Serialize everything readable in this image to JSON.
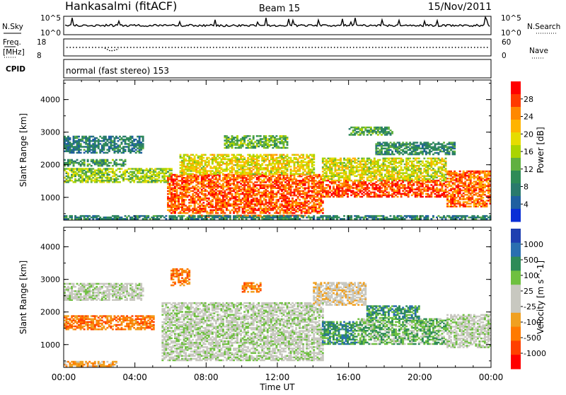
{
  "header": {
    "station": "Hankasalmi (fitACF)",
    "beam": "Beam 15",
    "date": "15/Nov/2011"
  },
  "nsky_panel": {
    "left_label": "N.Sky",
    "left_ticks": [
      "10^5",
      "10^0"
    ],
    "right_label": "N.Search",
    "right_ticks": [
      "10^5",
      "10^0"
    ]
  },
  "freq_panel": {
    "left_label_1": "Freq.",
    "left_label_2": "[MHz]",
    "left_ticks": [
      "18",
      "8"
    ],
    "right_label": "Nave",
    "right_ticks": [
      "60",
      "0"
    ]
  },
  "cpid_panel": {
    "label": "CPID",
    "mode_text": "normal (fast stereo) 153"
  },
  "chart_data": [
    {
      "type": "heatmap",
      "name": "power",
      "ylabel": "Slant Range [km]",
      "xlabel": "Time UT",
      "x_ticks": [
        "00:00",
        "04:00",
        "08:00",
        "12:00",
        "16:00",
        "20:00",
        "00:00"
      ],
      "y_ticks": [
        "4000",
        "3000",
        "2000",
        "1000"
      ],
      "ylim": [
        300,
        4600
      ],
      "xlim_hours": [
        0,
        24
      ],
      "colorbar_label": "Power [dB]",
      "colorbar_ticks": [
        "28",
        "24",
        "20",
        "16",
        "12",
        "8",
        "4"
      ],
      "colorbar_colors": [
        "#ff0000",
        "#ff3a00",
        "#ff8800",
        "#ffb400",
        "#e6dc00",
        "#aad400",
        "#60b040",
        "#2e8b57",
        "#2a7a6c",
        "#1f5fa0",
        "#0a2fd6"
      ],
      "regions": [
        {
          "t0": 0.0,
          "t1": 4.5,
          "r0": 2350,
          "r1": 2850,
          "level": 6
        },
        {
          "t0": 0.0,
          "t1": 6.0,
          "r0": 1450,
          "r1": 1900,
          "level": 14
        },
        {
          "t0": 0.0,
          "t1": 3.5,
          "r0": 1950,
          "r1": 2150,
          "level": 9
        },
        {
          "t0": 5.8,
          "t1": 14.5,
          "r0": 500,
          "r1": 1700,
          "level": 26
        },
        {
          "t0": 6.5,
          "t1": 14.0,
          "r0": 1700,
          "r1": 2300,
          "level": 18
        },
        {
          "t0": 7.0,
          "t1": 13.5,
          "r0": 380,
          "r1": 470,
          "level": 24
        },
        {
          "t0": 14.5,
          "t1": 21.5,
          "r0": 1000,
          "r1": 1500,
          "level": 27
        },
        {
          "t0": 14.5,
          "t1": 21.5,
          "r0": 1500,
          "r1": 2200,
          "level": 17
        },
        {
          "t0": 16.0,
          "t1": 18.5,
          "r0": 2900,
          "r1": 3150,
          "level": 10
        },
        {
          "t0": 17.5,
          "t1": 22.0,
          "r0": 2300,
          "r1": 2700,
          "level": 8
        },
        {
          "t0": 21.5,
          "t1": 24.0,
          "r0": 700,
          "r1": 1800,
          "level": 25
        },
        {
          "t0": 9.0,
          "t1": 12.5,
          "r0": 2500,
          "r1": 2900,
          "level": 12
        },
        {
          "t0": 0.0,
          "t1": 24.0,
          "r0": 320,
          "r1": 420,
          "level": 7
        }
      ]
    },
    {
      "type": "heatmap",
      "name": "velocity",
      "ylabel": "Slant Range [km]",
      "xlabel": "Time UT",
      "x_ticks": [
        "00:00",
        "04:00",
        "08:00",
        "12:00",
        "16:00",
        "20:00",
        "00:00"
      ],
      "y_ticks": [
        "4000",
        "3000",
        "2000",
        "1000"
      ],
      "ylim": [
        300,
        4600
      ],
      "xlim_hours": [
        0,
        24
      ],
      "colorbar_label": "Velocity [m s^-1]",
      "colorbar_ticks": [
        "1000",
        "500",
        "100",
        "25",
        "-25",
        "-100",
        "-500",
        "-1000"
      ],
      "colorbar_colors": [
        "#1f3fb0",
        "#2a6fb0",
        "#2e8b57",
        "#6fc040",
        "#c8c8c0",
        "#c8c8c0",
        "#f0a020",
        "#ff7a00",
        "#ff4000",
        "#ff0000"
      ],
      "regions": [
        {
          "t0": 0.0,
          "t1": 4.5,
          "r0": 2350,
          "r1": 2850,
          "level": 4
        },
        {
          "t0": 0.0,
          "t1": 5.0,
          "r0": 1450,
          "r1": 1900,
          "level": 7
        },
        {
          "t0": 5.5,
          "t1": 14.5,
          "r0": 500,
          "r1": 2300,
          "level": 4
        },
        {
          "t0": 14.5,
          "t1": 16.5,
          "r0": 1000,
          "r1": 1700,
          "level": 2
        },
        {
          "t0": 16.5,
          "t1": 21.5,
          "r0": 1000,
          "r1": 1800,
          "level": 3
        },
        {
          "t0": 17.0,
          "t1": 20.0,
          "r0": 1800,
          "r1": 2200,
          "level": 2
        },
        {
          "t0": 21.5,
          "t1": 24.0,
          "r0": 900,
          "r1": 1900,
          "level": 4
        },
        {
          "t0": 6.0,
          "t1": 7.0,
          "r0": 2800,
          "r1": 3300,
          "level": 7
        },
        {
          "t0": 10.0,
          "t1": 11.0,
          "r0": 2600,
          "r1": 2900,
          "level": 7
        },
        {
          "t0": 14.0,
          "t1": 17.0,
          "r0": 2200,
          "r1": 2900,
          "level": 5
        },
        {
          "t0": 0.0,
          "t1": 3.0,
          "r0": 320,
          "r1": 500,
          "level": 6
        }
      ]
    }
  ]
}
